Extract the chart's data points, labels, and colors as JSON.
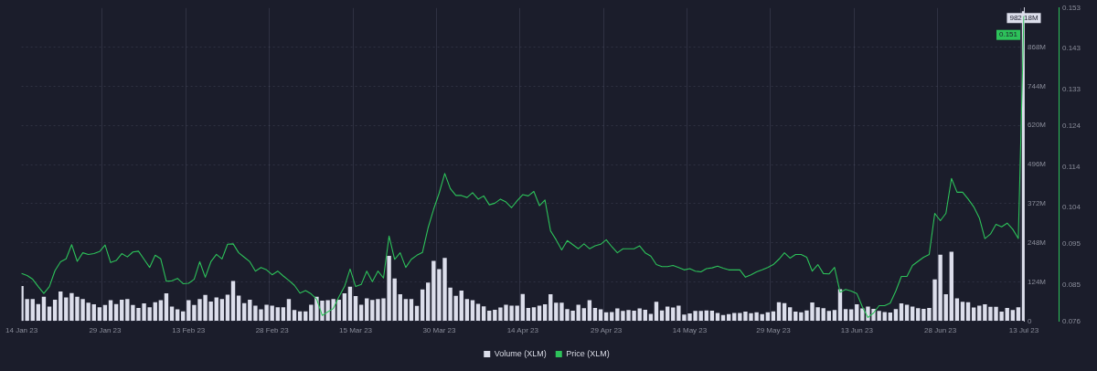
{
  "chart_data": {
    "type": "bar",
    "categories": [
      "14 Jan 23",
      null,
      null,
      null,
      null,
      null,
      null,
      null,
      null,
      null,
      null,
      null,
      null,
      null,
      null,
      "29 Jan 23",
      null,
      null,
      null,
      null,
      null,
      null,
      null,
      null,
      null,
      null,
      null,
      null,
      null,
      null,
      "13 Feb 23",
      null,
      null,
      null,
      null,
      null,
      null,
      null,
      null,
      null,
      null,
      null,
      null,
      null,
      null,
      "28 Feb 23",
      null,
      null,
      null,
      null,
      null,
      null,
      null,
      null,
      null,
      null,
      null,
      null,
      null,
      null,
      "15 Mar 23",
      null,
      null,
      null,
      null,
      null,
      null,
      null,
      null,
      null,
      null,
      null,
      null,
      null,
      null,
      "30 Mar 23",
      null,
      null,
      null,
      null,
      null,
      null,
      null,
      null,
      null,
      null,
      null,
      null,
      null,
      null,
      "14 Apr 23",
      null,
      null,
      null,
      null,
      null,
      null,
      null,
      null,
      null,
      null,
      null,
      null,
      null,
      null,
      "29 Apr 23",
      null,
      null,
      null,
      null,
      null,
      null,
      null,
      null,
      null,
      null,
      null,
      null,
      null,
      null,
      "14 May 23",
      null,
      null,
      null,
      null,
      null,
      null,
      null,
      null,
      null,
      null,
      null,
      null,
      null,
      null,
      "29 May 23",
      null,
      null,
      null,
      null,
      null,
      null,
      null,
      null,
      null,
      null,
      null,
      null,
      null,
      null,
      "13 Jun 23",
      null,
      null,
      null,
      null,
      null,
      null,
      null,
      null,
      null,
      null,
      null,
      null,
      null,
      null,
      "28 Jun 23",
      null,
      null,
      null,
      null,
      null,
      null,
      null,
      null,
      null,
      null,
      null,
      null,
      null,
      null,
      "13 Jul 23"
    ],
    "series": [
      {
        "name": "Volume (XLM)",
        "color": "#dcdeeb",
        "values": [
          111,
          70,
          70,
          54,
          77,
          46,
          68,
          94,
          75,
          89,
          77,
          70,
          58,
          53,
          44,
          51,
          66,
          54,
          68,
          70,
          51,
          42,
          56,
          44,
          60,
          66,
          88,
          46,
          37,
          31,
          66,
          51,
          70,
          83,
          62,
          75,
          70,
          84,
          127,
          81,
          57,
          68,
          49,
          37,
          52,
          49,
          44,
          44,
          70,
          35,
          31,
          31,
          52,
          77,
          65,
          66,
          70,
          68,
          88,
          109,
          79,
          52,
          72,
          67,
          70,
          72,
          207,
          135,
          85,
          70,
          70,
          48,
          100,
          122,
          191,
          165,
          200,
          106,
          80,
          97,
          70,
          66,
          55,
          47,
          33,
          36,
          43,
          52,
          49,
          49,
          86,
          42,
          44,
          49,
          53,
          85,
          58,
          58,
          38,
          33,
          52,
          41,
          66,
          42,
          37,
          28,
          29,
          40,
          32,
          35,
          33,
          40,
          36,
          23,
          61,
          34,
          46,
          43,
          49,
          21,
          24,
          32,
          32,
          34,
          33,
          26,
          19,
          22,
          26,
          26,
          30,
          25,
          28,
          22,
          28,
          31,
          60,
          57,
          44,
          30,
          28,
          34,
          59,
          44,
          41,
          32,
          35,
          101,
          38,
          37,
          53,
          40,
          46,
          39,
          32,
          29,
          27,
          38,
          56,
          52,
          46,
          41,
          39,
          42,
          132,
          210,
          85,
          220,
          72,
          61,
          60,
          43,
          49,
          53,
          45,
          45,
          30,
          42,
          35,
          44,
          982.18
        ],
        "value_labels": [
          null,
          null,
          null,
          null,
          null,
          null,
          null,
          null,
          null,
          null,
          null,
          null,
          null,
          null,
          null,
          null,
          null,
          null,
          null,
          null,
          null,
          null,
          null,
          null,
          null,
          null,
          null,
          null,
          null,
          null,
          null,
          null,
          null,
          null,
          null,
          null,
          null,
          null,
          null,
          null,
          null,
          null,
          null,
          null,
          null,
          null,
          null,
          null,
          null,
          null,
          null,
          null,
          null,
          null,
          null,
          null,
          null,
          null,
          null,
          null,
          null,
          null,
          null,
          null,
          null,
          null,
          null,
          null,
          null,
          null,
          null,
          null,
          null,
          null,
          null,
          null,
          null,
          null,
          null,
          null,
          null,
          null,
          null,
          null,
          null,
          null,
          null,
          null,
          null,
          null,
          null,
          null,
          null,
          null,
          null,
          null,
          null,
          null,
          null,
          null,
          null,
          null,
          null,
          null,
          null,
          null,
          null,
          null,
          null,
          null,
          null,
          null,
          null,
          null,
          null,
          null,
          null,
          null,
          null,
          null,
          null,
          null,
          null,
          null,
          null,
          null,
          null,
          null,
          null,
          null,
          null,
          null,
          null,
          null,
          null,
          null,
          null,
          null,
          null,
          null,
          null,
          null,
          null,
          null,
          null,
          null,
          null,
          null,
          null,
          null,
          null,
          null,
          null,
          null,
          null,
          null,
          null,
          null,
          null,
          null,
          null,
          null,
          null,
          null,
          null,
          null,
          null,
          null,
          null,
          null,
          null,
          null,
          null,
          null,
          null,
          null,
          null,
          null,
          null,
          null,
          "982.18M"
        ]
      },
      {
        "name": "Price (XLM)",
        "type": "line",
        "axis": "y2",
        "color": "#2dc25a",
        "marker": "none",
        "values": [
          0.0877,
          0.0872,
          0.0863,
          0.0845,
          0.0828,
          0.0845,
          0.0884,
          0.0906,
          0.0913,
          0.0948,
          0.0907,
          0.0928,
          0.0924,
          0.0926,
          0.0931,
          0.0947,
          0.0904,
          0.0909,
          0.0926,
          0.0918,
          0.093,
          0.0932,
          0.0912,
          0.0892,
          0.0922,
          0.0913,
          0.0858,
          0.0859,
          0.0865,
          0.0852,
          0.0853,
          0.0863,
          0.0906,
          0.0868,
          0.0906,
          0.0924,
          0.0913,
          0.0949,
          0.095,
          0.0928,
          0.0917,
          0.0906,
          0.0883,
          0.0892,
          0.0886,
          0.0874,
          0.0883,
          0.0871,
          0.086,
          0.0848,
          0.0829,
          0.0835,
          0.0827,
          0.0814,
          0.0774,
          0.0783,
          0.0791,
          0.082,
          0.0845,
          0.0888,
          0.0845,
          0.085,
          0.0883,
          0.0857,
          0.0883,
          0.0866,
          0.0969,
          0.0912,
          0.0928,
          0.0892,
          0.0912,
          0.0922,
          0.0929,
          0.0989,
          0.1035,
          0.1075,
          0.1123,
          0.1086,
          0.1069,
          0.1069,
          0.1064,
          0.1076,
          0.106,
          0.1068,
          0.1046,
          0.105,
          0.106,
          0.1053,
          0.1039,
          0.1056,
          0.1071,
          0.1068,
          0.1079,
          0.1044,
          0.1058,
          0.0982,
          0.096,
          0.0935,
          0.0958,
          0.0948,
          0.0938,
          0.095,
          0.0938,
          0.0945,
          0.0949,
          0.096,
          0.0943,
          0.0928,
          0.0938,
          0.0938,
          0.0938,
          0.0945,
          0.0928,
          0.092,
          0.0899,
          0.0894,
          0.0894,
          0.0897,
          0.0892,
          0.0886,
          0.0889,
          0.0883,
          0.0881,
          0.0889,
          0.0891,
          0.0895,
          0.089,
          0.0886,
          0.0886,
          0.0886,
          0.0868,
          0.0874,
          0.0881,
          0.0886,
          0.0892,
          0.0899,
          0.0912,
          0.0928,
          0.0915,
          0.0924,
          0.0924,
          0.0917,
          0.0883,
          0.0899,
          0.0877,
          0.0876,
          0.0892,
          0.0831,
          0.0838,
          0.0834,
          0.0828,
          0.0795,
          0.0769,
          0.078,
          0.0798,
          0.0798,
          0.0804,
          0.0834,
          0.087,
          0.087,
          0.0897,
          0.0907,
          0.0917,
          0.0924,
          0.1025,
          0.1007,
          0.1025,
          0.1111,
          0.1077,
          0.1077,
          0.106,
          0.1041,
          0.1014,
          0.0963,
          0.0974,
          0.0998,
          0.0992,
          0.1001,
          0.0986,
          0.0963,
          0.151
        ],
        "value_labels": [
          null,
          null,
          null,
          null,
          null,
          null,
          null,
          null,
          null,
          null,
          null,
          null,
          null,
          null,
          null,
          null,
          null,
          null,
          null,
          null,
          null,
          null,
          null,
          null,
          null,
          null,
          null,
          null,
          null,
          null,
          null,
          null,
          null,
          null,
          null,
          null,
          null,
          null,
          null,
          null,
          null,
          null,
          null,
          null,
          null,
          null,
          null,
          null,
          null,
          null,
          null,
          null,
          null,
          null,
          null,
          null,
          null,
          null,
          null,
          null,
          null,
          null,
          null,
          null,
          null,
          null,
          null,
          null,
          null,
          null,
          null,
          null,
          null,
          null,
          null,
          null,
          null,
          null,
          null,
          null,
          null,
          null,
          null,
          null,
          null,
          null,
          null,
          null,
          null,
          null,
          null,
          null,
          null,
          null,
          null,
          null,
          null,
          null,
          null,
          null,
          null,
          null,
          null,
          null,
          null,
          null,
          null,
          null,
          null,
          null,
          null,
          null,
          null,
          null,
          null,
          null,
          null,
          null,
          null,
          null,
          null,
          null,
          null,
          null,
          null,
          null,
          null,
          null,
          null,
          null,
          null,
          null,
          null,
          null,
          null,
          null,
          null,
          null,
          null,
          null,
          null,
          null,
          null,
          null,
          null,
          null,
          null,
          null,
          null,
          null,
          null,
          null,
          null,
          null,
          null,
          null,
          null,
          null,
          null,
          null,
          null,
          null,
          null,
          null,
          null,
          null,
          null,
          null,
          null,
          null,
          null,
          null,
          null,
          null,
          null,
          null,
          null,
          null,
          null,
          null,
          "0.151"
        ]
      }
    ],
    "ylim": [
      0,
      992
    ],
    "yticks": [
      {
        "value": 0,
        "label": "0"
      },
      {
        "value": 124,
        "label": "124M"
      },
      {
        "value": 248,
        "label": "248M"
      },
      {
        "value": 372,
        "label": "372M"
      },
      {
        "value": 496,
        "label": "496M"
      },
      {
        "value": 620,
        "label": "620M"
      },
      {
        "value": 744,
        "label": "744M"
      },
      {
        "value": 868,
        "label": "868M"
      }
    ],
    "y2lim": [
      0.076,
      0.153
    ],
    "y2ticks": [
      0.076,
      0.085,
      0.095,
      0.104,
      0.114,
      0.124,
      0.133,
      0.143,
      0.153
    ],
    "grid": true,
    "legend": "bottom"
  }
}
